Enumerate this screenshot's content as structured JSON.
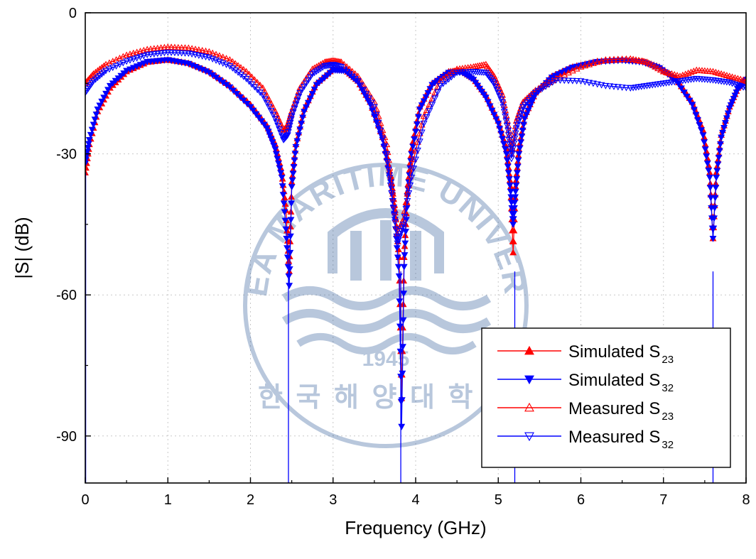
{
  "chart_data": {
    "type": "line",
    "xlabel": "Frequency (GHz)",
    "ylabel": "|S| (dB)",
    "xlim": [
      0,
      8
    ],
    "ylim": [
      -100,
      0
    ],
    "xticks": [
      0,
      1,
      2,
      3,
      4,
      5,
      6,
      7,
      8
    ],
    "xtick_labels": [
      "0",
      "1",
      "2",
      "3",
      "4",
      "5",
      "6",
      "7",
      "8"
    ],
    "yticks": [
      0,
      -30,
      -60,
      -90
    ],
    "ytick_labels": [
      "0",
      "-30",
      "-60",
      "-90"
    ],
    "grid": true,
    "legend_placement": "bottom-right",
    "series": [
      {
        "name": "Simulated S",
        "name_subscript": "23",
        "color": "#ff0000",
        "marker": "filled-triangle-up",
        "x": [
          0.0,
          0.05,
          0.15,
          0.3,
          0.5,
          0.75,
          1.0,
          1.25,
          1.5,
          1.75,
          2.0,
          2.2,
          2.3,
          2.38,
          2.43,
          2.47,
          2.5,
          2.55,
          2.65,
          2.8,
          3.0,
          3.15,
          3.3,
          3.45,
          3.6,
          3.7,
          3.75,
          3.8,
          3.83,
          3.86,
          3.9,
          3.95,
          4.05,
          4.2,
          4.4,
          4.55,
          4.7,
          4.85,
          5.0,
          5.1,
          5.15,
          5.18,
          5.21,
          5.25,
          5.32,
          5.45,
          5.65,
          5.9,
          6.2,
          6.5,
          6.75,
          6.95,
          7.15,
          7.35,
          7.48,
          7.56,
          7.6,
          7.64,
          7.7,
          7.8,
          7.9,
          8.0
        ],
        "y": [
          -34,
          -28,
          -21,
          -16,
          -12.5,
          -10.5,
          -10,
          -10.7,
          -12.5,
          -15.5,
          -19.5,
          -24,
          -28,
          -34,
          -42,
          -55,
          -36,
          -28,
          -20.5,
          -15,
          -12,
          -12.2,
          -14.5,
          -19,
          -26.5,
          -35,
          -42,
          -52,
          -82,
          -52,
          -38,
          -29,
          -20,
          -15,
          -12.5,
          -12.3,
          -14,
          -17.5,
          -23,
          -29,
          -37,
          -51,
          -37,
          -29,
          -22,
          -17,
          -13.5,
          -11.5,
          -10.3,
          -10,
          -10.3,
          -11.5,
          -14,
          -19,
          -25,
          -34,
          -48,
          -34,
          -26,
          -20,
          -16,
          -14
        ]
      },
      {
        "name": "Simulated S",
        "name_subscript": "32",
        "color": "#0000ff",
        "marker": "filled-triangle-down",
        "x": [
          0.0,
          0.05,
          0.15,
          0.3,
          0.5,
          0.75,
          1.0,
          1.25,
          1.5,
          1.75,
          2.0,
          2.2,
          2.3,
          2.38,
          2.43,
          2.47,
          2.5,
          2.55,
          2.65,
          2.8,
          3.0,
          3.15,
          3.3,
          3.45,
          3.6,
          3.7,
          3.75,
          3.8,
          3.83,
          3.86,
          3.9,
          3.95,
          4.05,
          4.2,
          4.4,
          4.55,
          4.7,
          4.85,
          5.0,
          5.1,
          5.15,
          5.18,
          5.21,
          5.25,
          5.32,
          5.45,
          5.65,
          5.9,
          6.2,
          6.5,
          6.75,
          6.95,
          7.15,
          7.35,
          7.48,
          7.56,
          7.6,
          7.64,
          7.7,
          7.8,
          7.9,
          8.0
        ],
        "y": [
          -32,
          -27,
          -20.5,
          -15.5,
          -12.3,
          -10.4,
          -10,
          -10.8,
          -12.7,
          -15.8,
          -20,
          -24.5,
          -29,
          -35,
          -46,
          -58,
          -37,
          -28.5,
          -21,
          -15.3,
          -12.2,
          -12.3,
          -14.7,
          -19.5,
          -27,
          -36,
          -44,
          -56,
          -88,
          -54,
          -39,
          -30,
          -20.5,
          -15.3,
          -12.7,
          -12.5,
          -14.2,
          -18,
          -23.5,
          -30,
          -38,
          -45,
          -38,
          -30,
          -22.5,
          -17.3,
          -13.7,
          -11.6,
          -10.4,
          -10.1,
          -10.5,
          -11.7,
          -14.3,
          -19.5,
          -26,
          -35,
          -48,
          -35,
          -26.5,
          -20.3,
          -16.2,
          -14.2
        ]
      },
      {
        "name": "Measured S",
        "name_subscript": "23",
        "color": "#ff0000",
        "marker": "open-triangle-up",
        "x": [
          0.0,
          0.1,
          0.25,
          0.5,
          0.75,
          1.0,
          1.25,
          1.5,
          1.75,
          1.95,
          2.15,
          2.3,
          2.4,
          2.45,
          2.5,
          2.6,
          2.75,
          2.9,
          3.0,
          3.1,
          3.3,
          3.5,
          3.65,
          3.72,
          3.78,
          3.85,
          3.95,
          4.1,
          4.3,
          4.5,
          4.7,
          4.85,
          4.95,
          5.05,
          5.12,
          5.16,
          5.22,
          5.3,
          5.45,
          5.7,
          6.0,
          6.3,
          6.6,
          6.8,
          7.0,
          7.2,
          7.4,
          7.6,
          7.8,
          8.0
        ],
        "y": [
          -15,
          -13,
          -11,
          -9,
          -7.8,
          -7.3,
          -7.5,
          -8.3,
          -10,
          -12.5,
          -16,
          -21,
          -25,
          -24,
          -21,
          -16,
          -12,
          -10.5,
          -10.2,
          -10.5,
          -13.5,
          -19,
          -28,
          -38,
          -47,
          -44,
          -33,
          -22,
          -14.5,
          -12,
          -11.5,
          -11,
          -13.5,
          -17.5,
          -24,
          -30,
          -23,
          -19,
          -16.5,
          -14,
          -11.5,
          -10,
          -9.8,
          -10.5,
          -12.5,
          -13.5,
          -12.2,
          -12.5,
          -13.5,
          -14.5
        ]
      },
      {
        "name": "Measured S",
        "name_subscript": "32",
        "color": "#0000ff",
        "marker": "open-triangle-down",
        "x": [
          0.0,
          0.1,
          0.25,
          0.5,
          0.75,
          1.0,
          1.25,
          1.5,
          1.75,
          1.95,
          2.15,
          2.3,
          2.4,
          2.45,
          2.5,
          2.6,
          2.75,
          2.9,
          3.0,
          3.1,
          3.3,
          3.5,
          3.65,
          3.72,
          3.78,
          3.85,
          3.95,
          4.1,
          4.3,
          4.5,
          4.7,
          4.85,
          4.95,
          5.05,
          5.12,
          5.16,
          5.22,
          5.3,
          5.45,
          5.7,
          6.0,
          6.3,
          6.6,
          6.8,
          7.0,
          7.2,
          7.4,
          7.6,
          7.8,
          8.0
        ],
        "y": [
          -17,
          -14.5,
          -12.3,
          -10.3,
          -8.9,
          -8.4,
          -8.6,
          -9.5,
          -11.3,
          -14,
          -17.5,
          -22.5,
          -27,
          -26,
          -22,
          -17,
          -13,
          -11.3,
          -11,
          -11.5,
          -14.5,
          -20,
          -30,
          -40,
          -49,
          -45,
          -35,
          -23.5,
          -15.5,
          -12.7,
          -12.5,
          -12.7,
          -15,
          -19,
          -25,
          -31,
          -24.5,
          -20,
          -17,
          -14.3,
          -14.5,
          -15.5,
          -16,
          -15.5,
          -15,
          -14.5,
          -14,
          -14.3,
          -14.8,
          -16
        ]
      }
    ]
  },
  "watermark": {
    "arc_text": "KOREA MARITIME UNIVERSITY",
    "year": "1945",
    "bottom_text": "한 국 해 양 대 학 교",
    "color": "#2b5797"
  }
}
